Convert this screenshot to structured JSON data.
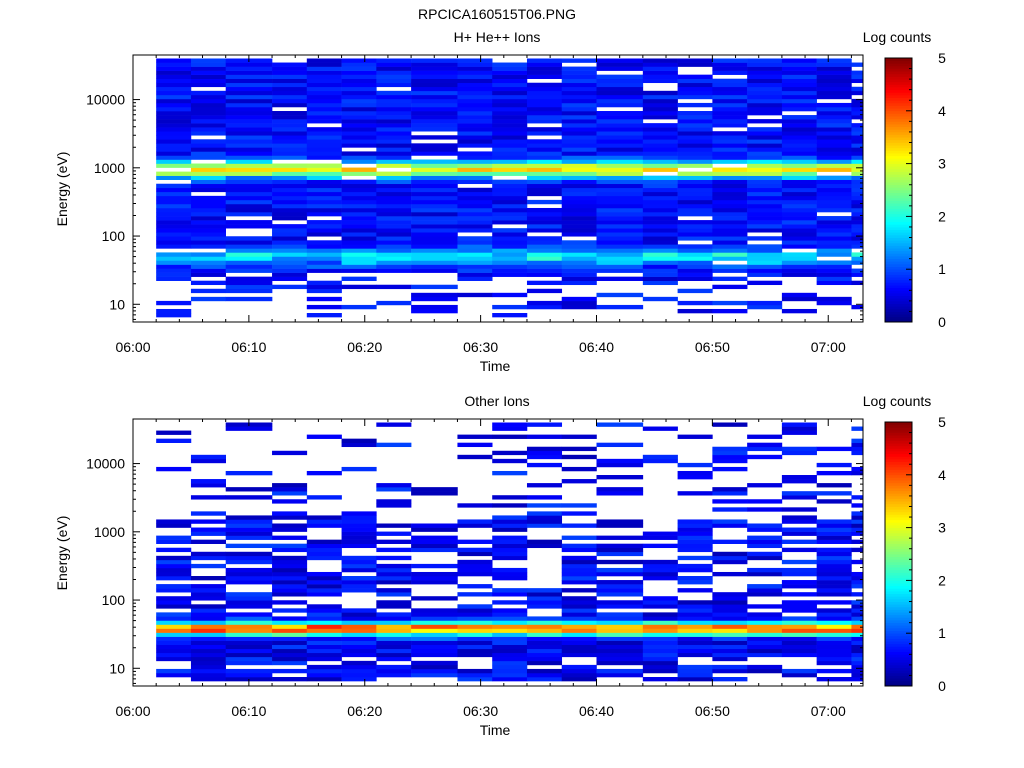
{
  "figure_title": "RPCICA160515T06.PNG",
  "chart_data": [
    {
      "type": "heatmap",
      "title": "H+ He++ Ions",
      "xlabel": "Time",
      "ylabel": "Energy (eV)",
      "x_scale": "time",
      "y_scale": "log",
      "xlim": [
        "06:00",
        "07:03"
      ],
      "ylim": [
        5.5,
        45000
      ],
      "x_ticks": [
        "06:00",
        "06:10",
        "06:20",
        "06:30",
        "06:40",
        "06:50",
        "07:00"
      ],
      "y_ticks": [
        "10",
        "100",
        "1000",
        "10000"
      ],
      "colorbar": {
        "label": "Log counts",
        "range": [
          0,
          5
        ],
        "ticks": [
          "0",
          "1",
          "2",
          "3",
          "4",
          "5"
        ],
        "colormap": "jet"
      },
      "time_bin_starts": [
        "06:02",
        "06:05",
        "06:08",
        "06:12",
        "06:15",
        "06:18",
        "06:21",
        "06:24",
        "06:28",
        "06:31",
        "06:34",
        "06:37",
        "06:40",
        "06:44",
        "06:47",
        "06:50",
        "06:53",
        "06:56",
        "06:59",
        "07:02"
      ],
      "profile": {
        "band_center_eV": 950,
        "band_peak_log_counts": 2.6,
        "secondary_band_eV": 50,
        "secondary_peak_log_counts": 1.3,
        "background_log_counts": 0.35,
        "low_energy_cutoff_eV": 8
      }
    },
    {
      "type": "heatmap",
      "title": "Other Ions",
      "xlabel": "Time",
      "ylabel": "Energy (eV)",
      "x_scale": "time",
      "y_scale": "log",
      "xlim": [
        "06:00",
        "07:03"
      ],
      "ylim": [
        5.5,
        45000
      ],
      "x_ticks": [
        "06:00",
        "06:10",
        "06:20",
        "06:30",
        "06:40",
        "06:50",
        "07:00"
      ],
      "y_ticks": [
        "10",
        "100",
        "1000",
        "10000"
      ],
      "colorbar": {
        "label": "Log counts",
        "range": [
          0,
          5
        ],
        "ticks": [
          "0",
          "1",
          "2",
          "3",
          "4",
          "5"
        ],
        "colormap": "jet"
      },
      "time_bin_starts": [
        "06:02",
        "06:05",
        "06:08",
        "06:12",
        "06:15",
        "06:18",
        "06:21",
        "06:24",
        "06:28",
        "06:31",
        "06:34",
        "06:37",
        "06:40",
        "06:44",
        "06:47",
        "06:50",
        "06:53",
        "06:56",
        "06:59",
        "07:02"
      ],
      "profile": {
        "band_center_eV": 38,
        "band_peak_log_counts": 3.6,
        "background_log_counts": 0.25,
        "sparse_above_eV": 1500,
        "low_energy_cutoff_eV": 8
      }
    }
  ]
}
